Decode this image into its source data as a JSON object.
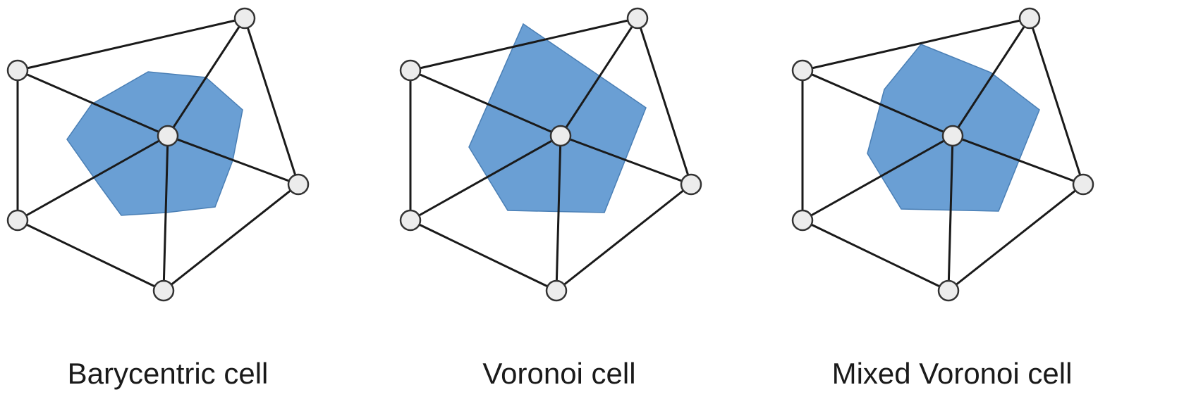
{
  "panels": [
    {
      "caption": "Barycentric cell"
    },
    {
      "caption": "Voronoi cell"
    },
    {
      "caption": "Mixed Voronoi cell"
    }
  ],
  "colors": {
    "cell_fill": "#6a9fd4",
    "cell_stroke": "#4a7fb5",
    "edge": "#1a1a1a",
    "vertex_fill": "#ececec",
    "vertex_stroke": "#333333",
    "caption_text": "#1a1a1a"
  }
}
